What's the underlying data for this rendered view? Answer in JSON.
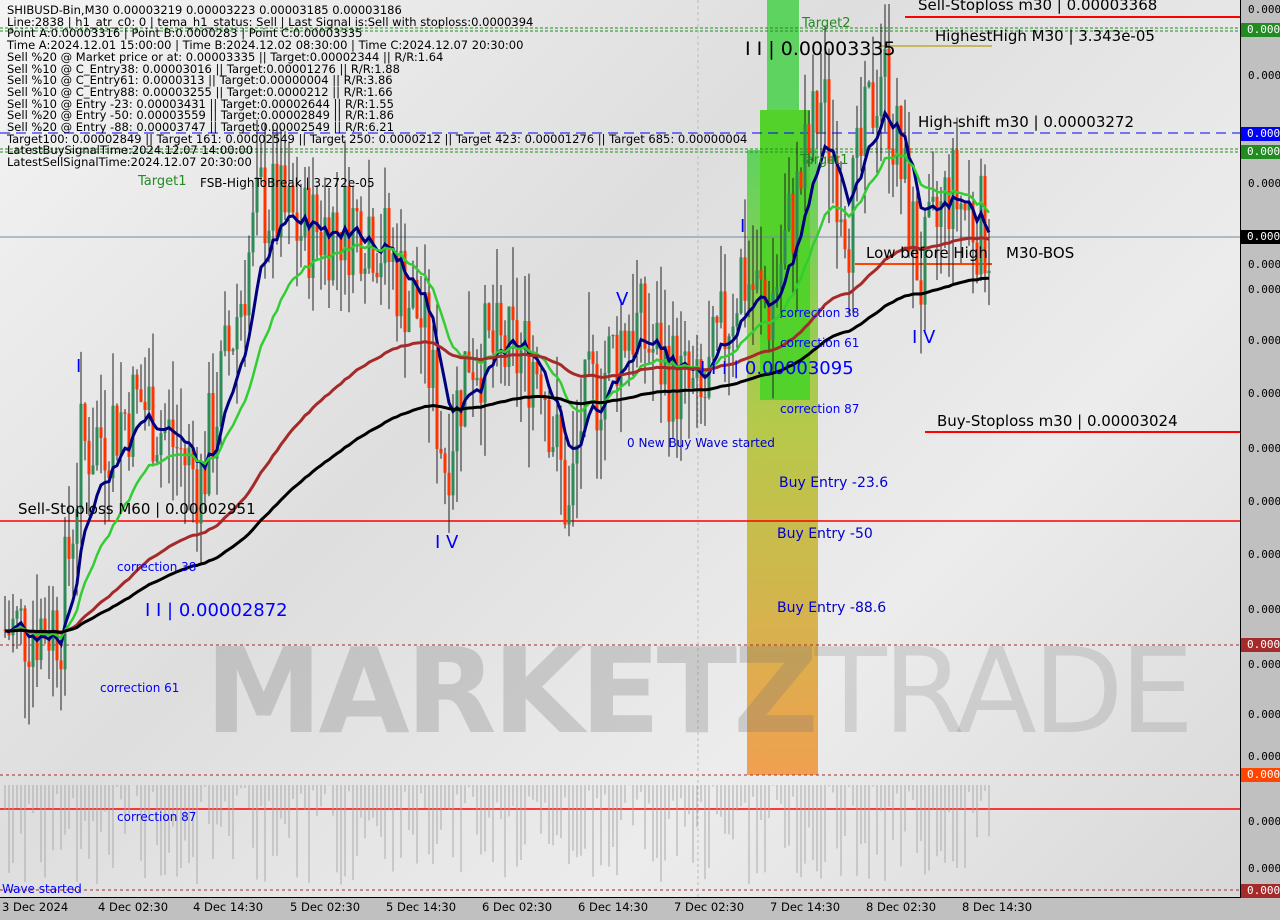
{
  "header": {
    "symbol_line": "SHIBUSD-Bin,M30  0.00003219 0.00003223 0.00003185 0.00003186",
    "lines": [
      "Line:2838 | h1_atr_c0: 0 | tema_h1_status: Sell | Last Signal is:Sell with stoploss:0.0000394",
      "Point A:0.00003316 | Point B:0.0000283 | Point C:0.00003335",
      "Time A:2024.12.01 15:00:00 | Time B:2024.12.02 08:30:00 | Time C:2024.12.07 20:30:00",
      "Sell %20 @ Market price or at: 0.00003335 || Target:0.00002344 || R/R:1.64",
      "Sell %10 @ C_Entry38: 0.00003016 || Target:0.00001276 || R/R:1.88",
      "Sell %10 @ C_Entry61: 0.0000313 || Target:0.00000004 || R/R:3.86",
      "Sell %10 @ C_Entry88: 0.00003255 || Target:0.0000212 || R/R:1.66",
      "Sell %10 @ Entry -23: 0.00003431 || Target:0.00002644 || R/R:1.55",
      "Sell %20 @ Entry -50: 0.00003559 || Target:0.00002849 || R/R:1.86",
      "Sell %20 @ Entry -88: 0.00003747 || Target:0.00002549 || R/R:6.21",
      "Target100: 0.00002849 || Target 161: 0.00002549 || Target 250: 0.0000212 || Target 423: 0.00001276 || Target 685: 0.00000004",
      "LatestBuySignalTime:2024.12.07 14:00:00",
      "LatestSellSignalTime:2024.12.07 20:30:00"
    ]
  },
  "annotations": {
    "sell_stoploss_m30": "Sell-Stoploss m30 | 0.00003368",
    "highest_high": "HighestHigh   M30 | 3.343e-05",
    "high_shift": "High-shift m30 | 0.00003272",
    "low_before_high": "Low before High",
    "m30_bos": "M30-BOS",
    "buy_stoploss_m30": "Buy-Stoploss m30 | 0.00003024",
    "sell_stoploss_m60": "Sell-Stoploss M60 | 0.00002951",
    "point_c": "I I | 0.00003335",
    "point_b": "I I | 0.00002872",
    "point_iii": "I I I | 0.00003095",
    "wave_iv_1": "I V",
    "wave_iv_2": "I V",
    "wave_v": "V",
    "wave_i": "I",
    "wave_i2": "I",
    "new_buy_wave": "0 New Buy Wave started",
    "wave_started": "Wave started",
    "fsb": "FSB-HighToBreak | 3.272e-05",
    "target1_a": "Target1",
    "target1_b": "Target1",
    "target2": "Target2",
    "correction38_a": "correction 38",
    "correction61_a": "correction 61",
    "correction87_a": "correction 87",
    "correction38_b": "correction 38",
    "correction61_b": "correction 61",
    "correction87_b": "correction 87",
    "buy_entry_23": "Buy Entry -23.6",
    "buy_entry_50": "Buy Entry -50",
    "buy_entry_88": "Buy Entry -88.6"
  },
  "watermark": {
    "bold": "MARKETZ",
    "light": "TRADE"
  },
  "price_axis": {
    "labels": [
      "0.000",
      "0.000",
      "0.000",
      "0.000",
      "0.000",
      "0.000",
      "0.000",
      "0.000",
      "0.000",
      "0.000",
      "0.000",
      "0.000",
      "0.000",
      "0.000",
      "0.000",
      "0.000"
    ],
    "tags": [
      {
        "text": "0.000",
        "color": "#228b22"
      },
      {
        "text": "0.000",
        "color": "#0000ff"
      },
      {
        "text": "0.000",
        "color": "#228b22"
      },
      {
        "text": "0.000",
        "color": "#000000"
      },
      {
        "text": "0.000",
        "color": "#a52a2a"
      },
      {
        "text": "0.000",
        "color": "#ff4500"
      },
      {
        "text": "0.000",
        "color": "#a52a2a"
      }
    ]
  },
  "time_axis": [
    "3 Dec 2024",
    "4 Dec 02:30",
    "4 Dec 14:30",
    "5 Dec 02:30",
    "5 Dec 14:30",
    "6 Dec 02:30",
    "6 Dec 14:30",
    "7 Dec 02:30",
    "7 Dec 14:30",
    "8 Dec 02:30",
    "8 Dec 14:30"
  ],
  "chart_data": {
    "type": "candlestick",
    "title": "SHIBUSD-Bin,M30",
    "timeframe": "M30",
    "last_ohlc": {
      "open": 3.219e-05,
      "high": 3.223e-05,
      "low": 3.185e-05,
      "close": 3.186e-05
    },
    "approx_close_path": [
      {
        "t": "2024-12-03 15:00",
        "close": 2.86e-05
      },
      {
        "t": "2024-12-03 22:00",
        "close": 2.868e-05
      },
      {
        "t": "2024-12-04 00:30",
        "close": 3.009e-05
      },
      {
        "t": "2024-12-04 08:00",
        "close": 3.051e-05
      },
      {
        "t": "2024-12-04 15:30",
        "close": 2.984e-05
      },
      {
        "t": "2024-12-04 23:00",
        "close": 3.216e-05
      },
      {
        "t": "2024-12-05 04:00",
        "close": 3.191e-05
      },
      {
        "t": "2024-12-05 12:30",
        "close": 3.2e-05
      },
      {
        "t": "2024-12-05 19:00",
        "close": 3.117e-05
      },
      {
        "t": "2024-12-05 22:00",
        "close": 3.001e-05
      },
      {
        "t": "2024-12-06 01:00",
        "close": 3.092e-05
      },
      {
        "t": "2024-12-06 10:00",
        "close": 3.084e-05
      },
      {
        "t": "2024-12-06 13:30",
        "close": 2.951e-05
      },
      {
        "t": "2024-12-06 15:00",
        "close": 3.034e-05
      },
      {
        "t": "2024-12-06 21:00",
        "close": 3.117e-05
      },
      {
        "t": "2024-12-07 06:00",
        "close": 3.042e-05
      },
      {
        "t": "2024-12-07 11:00",
        "close": 3.158e-05
      },
      {
        "t": "2024-12-07 14:30",
        "close": 3.125e-05
      },
      {
        "t": "2024-12-07 21:00",
        "close": 3.299e-05
      },
      {
        "t": "2024-12-08 00:30",
        "close": 3.2e-05
      },
      {
        "t": "2024-12-08 04:30",
        "close": 3.332e-05
      },
      {
        "t": "2024-12-08 09:30",
        "close": 3.15e-05
      },
      {
        "t": "2024-12-08 13:00",
        "close": 3.225e-05
      },
      {
        "t": "2024-12-08 18:00",
        "close": 3.186e-05
      }
    ],
    "levels": [
      {
        "name": "Sell-Stoploss m30",
        "value": 3.368e-05,
        "color": "#ff0000"
      },
      {
        "name": "High-shift m30",
        "value": 3.272e-05,
        "color": "#0000ff"
      },
      {
        "name": "Buy-Stoploss m30",
        "value": 3.024e-05,
        "color": "#ff0000"
      },
      {
        "name": "Sell-Stoploss M60",
        "value": 2.951e-05,
        "color": "#ff0000"
      }
    ],
    "colors": {
      "bull": "#2e8b57",
      "bear": "#ff3300",
      "ma_fast": "#000080",
      "ma_mid": "#32cd32",
      "ma_slow": "#a52a2a",
      "ma_long": "#000000"
    }
  }
}
